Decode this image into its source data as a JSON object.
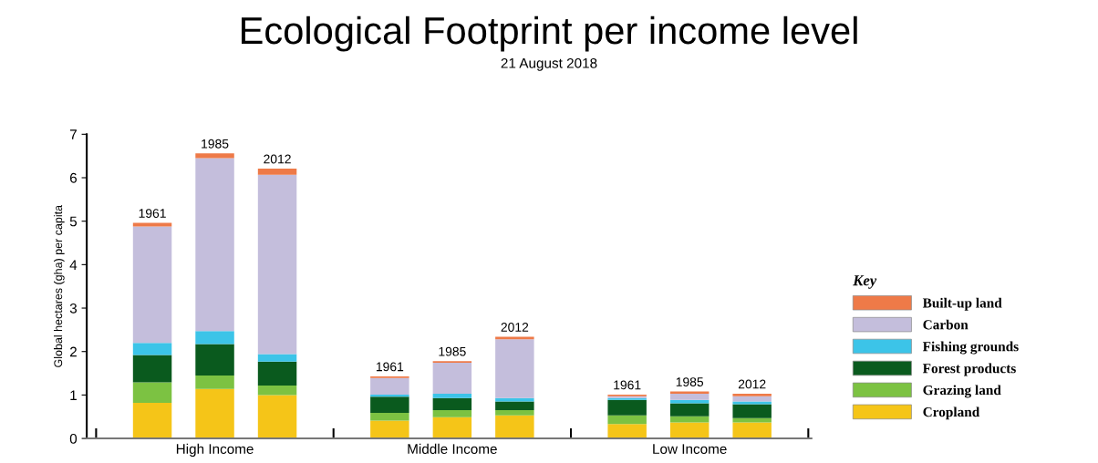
{
  "chart_data": {
    "type": "bar",
    "title": "Ecological Footprint per income level",
    "subtitle": "21 August 2018",
    "ylabel": "Global hectares (gha) per capita",
    "legend_title": "Key",
    "categories": [
      "1961",
      "1985",
      "2012",
      "1961",
      "1985",
      "2012",
      "1961",
      "1985",
      "2012"
    ],
    "annotations": [
      "High Income",
      "Middle Income",
      "Low Income"
    ],
    "stacked": true,
    "ylim": [
      0,
      7
    ],
    "yticks": [
      0,
      1,
      2,
      3,
      4,
      5,
      6,
      7
    ],
    "grid": false,
    "legend": "right",
    "series": [
      {
        "name": "Cropland",
        "color": "#f5c518",
        "values": [
          0.82,
          1.14,
          1.0,
          0.41,
          0.49,
          0.53,
          0.33,
          0.37,
          0.37
        ]
      },
      {
        "name": "Grazing land",
        "color": "#7cc242",
        "values": [
          0.47,
          0.31,
          0.22,
          0.18,
          0.16,
          0.12,
          0.2,
          0.14,
          0.1
        ]
      },
      {
        "name": "Forest products",
        "color": "#0a5a1e",
        "values": [
          0.63,
          0.72,
          0.55,
          0.37,
          0.28,
          0.2,
          0.36,
          0.3,
          0.32
        ]
      },
      {
        "name": "Fishing grounds",
        "color": "#3cc4e8",
        "values": [
          0.28,
          0.3,
          0.17,
          0.05,
          0.1,
          0.08,
          0.04,
          0.08,
          0.06
        ]
      },
      {
        "name": "Carbon",
        "color": "#c4bedc",
        "values": [
          2.68,
          3.98,
          4.13,
          0.38,
          0.71,
          1.35,
          0.04,
          0.14,
          0.12
        ]
      },
      {
        "name": "Built-up land",
        "color": "#ee7a48",
        "values": [
          0.08,
          0.11,
          0.14,
          0.04,
          0.04,
          0.06,
          0.04,
          0.05,
          0.06
        ]
      }
    ]
  }
}
